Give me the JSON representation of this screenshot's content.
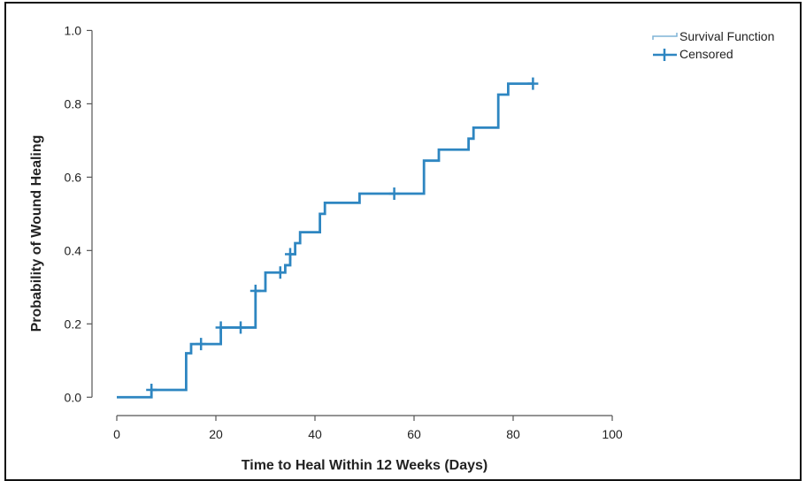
{
  "chart_data": {
    "type": "line",
    "title": "",
    "xlabel": "Time to Heal Within 12 Weeks (Days)",
    "ylabel": "Probability of Wound Healing",
    "xlim": [
      -5,
      105
    ],
    "ylim": [
      -0.05,
      1.03
    ],
    "xticks": [
      0,
      20,
      40,
      60,
      80,
      100
    ],
    "yticks": [
      0.0,
      0.2,
      0.4,
      0.6,
      0.8,
      1.0
    ],
    "xtick_labels": [
      "0",
      "20",
      "40",
      "60",
      "80",
      "100"
    ],
    "ytick_labels": [
      "0.0",
      "0.2",
      "0.4",
      "0.6",
      "0.8",
      "1.0"
    ],
    "grid": false,
    "legend_position": "top-right",
    "colors": {
      "series": "#2e86c1",
      "legend_step": "#7fb3d5",
      "axis": "#555555"
    },
    "series": [
      {
        "name": "Survival Function",
        "step": true,
        "x": [
          0,
          7,
          14,
          15,
          21,
          28,
          30,
          34,
          35,
          36,
          37,
          41,
          42,
          49,
          62,
          65,
          71,
          72,
          77,
          79,
          84
        ],
        "y": [
          0.0,
          0.02,
          0.12,
          0.145,
          0.19,
          0.29,
          0.34,
          0.36,
          0.39,
          0.42,
          0.45,
          0.5,
          0.53,
          0.555,
          0.645,
          0.675,
          0.705,
          0.735,
          0.825,
          0.855,
          0.855
        ]
      },
      {
        "name": "Censored",
        "marker": "+",
        "x": [
          7,
          17,
          21,
          25,
          28,
          33,
          35,
          56,
          84
        ],
        "y": [
          0.02,
          0.145,
          0.19,
          0.19,
          0.29,
          0.34,
          0.39,
          0.555,
          0.855
        ]
      }
    ]
  }
}
